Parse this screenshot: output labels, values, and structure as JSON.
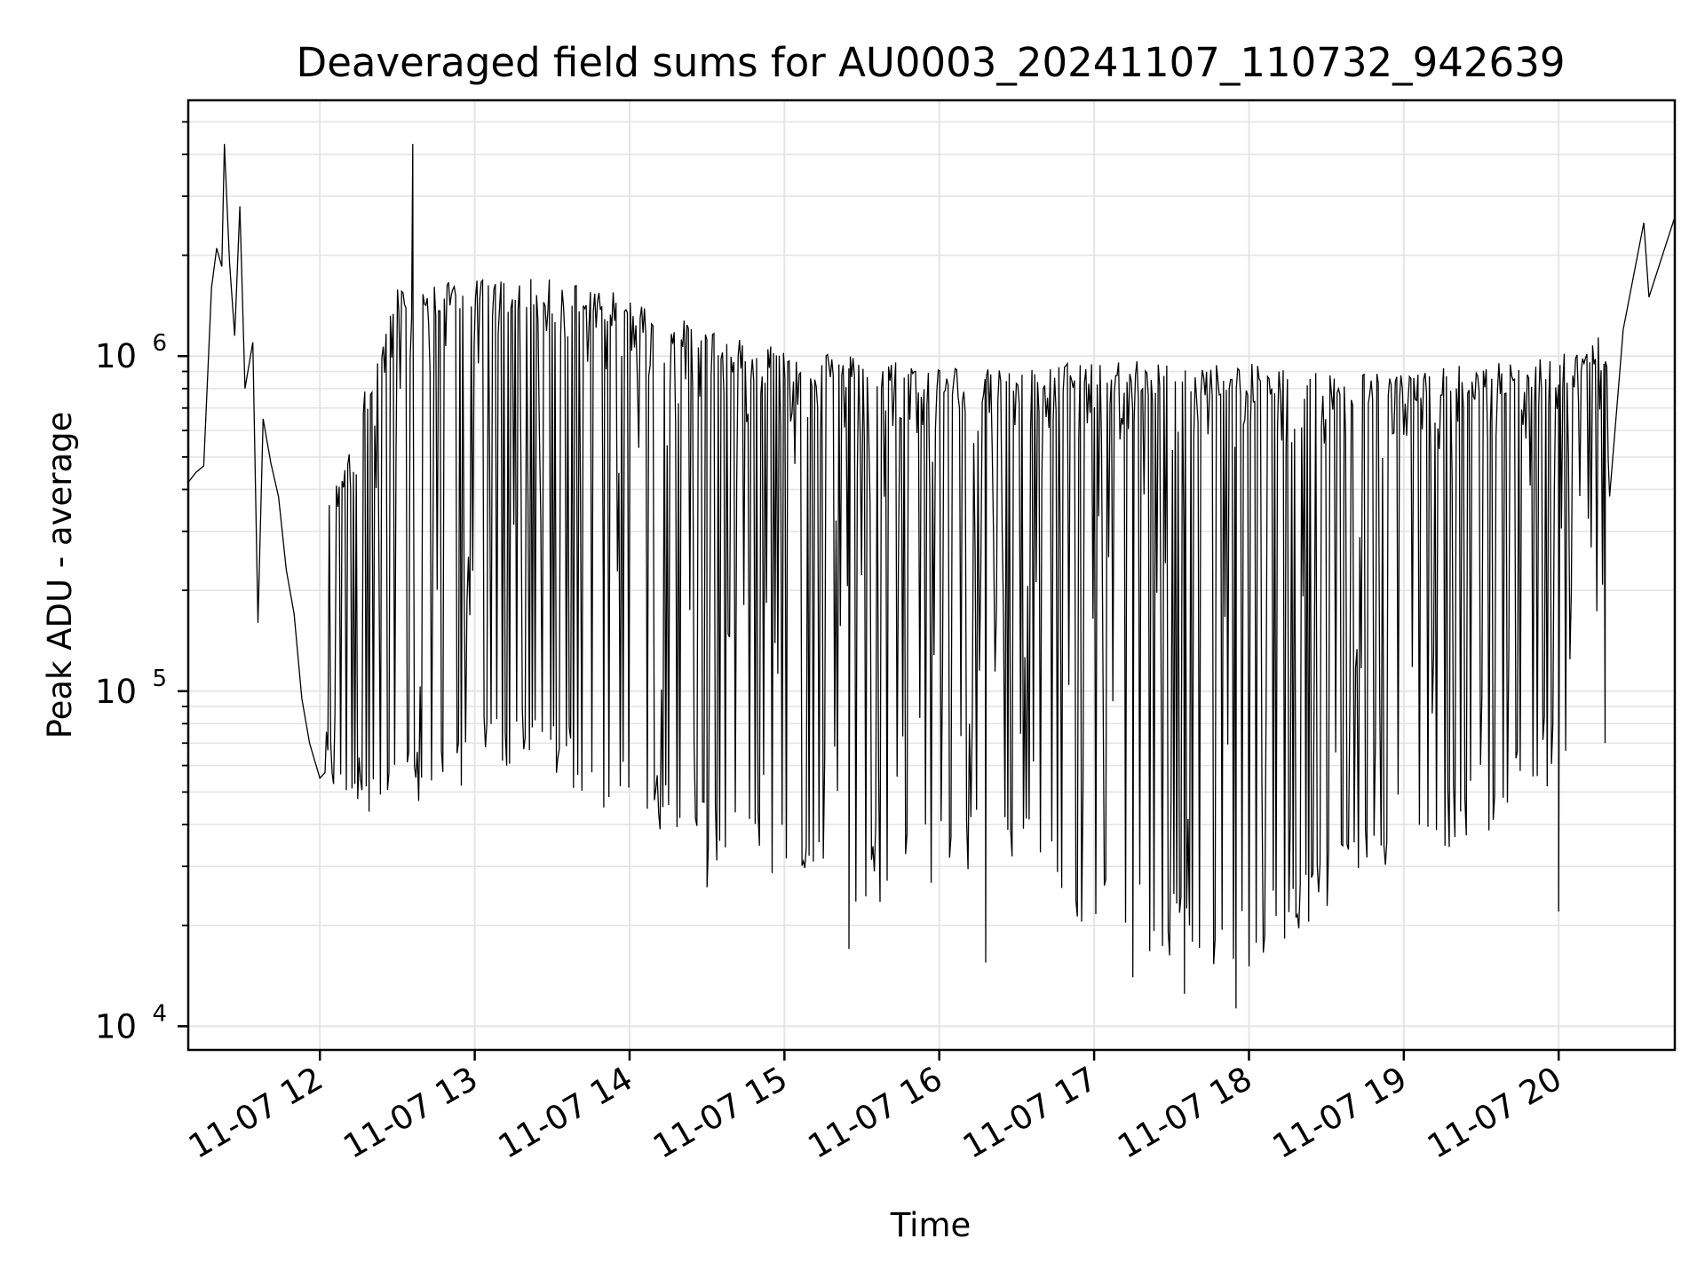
{
  "chart_data": {
    "type": "line",
    "title": "Deaveraged field sums for AU0003_20241107_110732_942639",
    "xlabel": "Time",
    "ylabel": "Peak ADU - average",
    "yscale": "log",
    "ylim": [
      8500,
      5800000
    ],
    "xlim": [
      "2024-11-07 11:09",
      "2024-11-07 20:45"
    ],
    "grid": true,
    "legend": "none",
    "line_color": "#000000",
    "grid_color": "#e5e5e5",
    "x_ticks": [
      {
        "t": "2024-11-07 12:00",
        "label": "11-07 12"
      },
      {
        "t": "2024-11-07 13:00",
        "label": "11-07 13"
      },
      {
        "t": "2024-11-07 14:00",
        "label": "11-07 14"
      },
      {
        "t": "2024-11-07 15:00",
        "label": "11-07 15"
      },
      {
        "t": "2024-11-07 16:00",
        "label": "11-07 16"
      },
      {
        "t": "2024-11-07 17:00",
        "label": "11-07 17"
      },
      {
        "t": "2024-11-07 18:00",
        "label": "11-07 18"
      },
      {
        "t": "2024-11-07 19:00",
        "label": "11-07 19"
      },
      {
        "t": "2024-11-07 20:00",
        "label": "11-07 20"
      }
    ],
    "y_ticks": [
      {
        "value": 10000,
        "base": "10",
        "exp": "4"
      },
      {
        "value": 100000,
        "base": "10",
        "exp": "5"
      },
      {
        "value": 1000000,
        "base": "10",
        "exp": "6"
      }
    ],
    "series": [
      {
        "points": [
          [
            "2024-11-07 11:09",
            420000
          ],
          [
            "2024-11-07 11:12",
            450000
          ],
          [
            "2024-11-07 11:15",
            470000
          ],
          [
            "2024-11-07 11:18",
            1600000
          ],
          [
            "2024-11-07 11:20",
            2100000
          ],
          [
            "2024-11-07 11:22",
            1850000
          ],
          [
            "2024-11-07 11:23",
            4300000
          ],
          [
            "2024-11-07 11:25",
            1900000
          ],
          [
            "2024-11-07 11:27",
            1150000
          ],
          [
            "2024-11-07 11:29",
            2800000
          ],
          [
            "2024-11-07 11:31",
            800000
          ],
          [
            "2024-11-07 11:34",
            1100000
          ],
          [
            "2024-11-07 11:36",
            160000
          ],
          [
            "2024-11-07 11:38",
            650000
          ],
          [
            "2024-11-07 11:41",
            480000
          ],
          [
            "2024-11-07 11:44",
            380000
          ],
          [
            "2024-11-07 11:47",
            230000
          ],
          [
            "2024-11-07 11:50",
            170000
          ],
          [
            "2024-11-07 11:53",
            95000
          ],
          [
            "2024-11-07 11:56",
            70000
          ],
          [
            "2024-11-07 12:00",
            55000
          ],
          [
            "2024-11-07 12:04",
            60000
          ],
          [
            "2024-11-07 12:09",
            80000
          ],
          [
            "2024-11-07 12:14",
            80000
          ],
          [
            "2024-11-07 12:20",
            75000
          ],
          [
            "2024-11-07 12:26",
            65000
          ],
          [
            "2024-11-07 12:32",
            60000
          ],
          [
            "2024-11-07 12:36",
            4300000
          ],
          [
            "2024-11-07 12:40",
            90000
          ],
          [
            "2024-11-07 12:50",
            120000
          ],
          [
            "2024-11-07 13:00",
            200000
          ],
          [
            "2024-11-07 13:10",
            350000
          ],
          [
            "2024-11-07 13:20",
            500000
          ],
          [
            "2024-11-07 13:30",
            600000
          ],
          [
            "2024-11-07 13:40",
            700000
          ],
          [
            "2024-11-07 13:50",
            800000
          ],
          [
            "2024-11-07 14:00",
            900000
          ],
          [
            "2024-11-07 14:20",
            1050000
          ],
          [
            "2024-11-07 14:40",
            900000
          ],
          [
            "2024-11-07 15:00",
            850000
          ],
          [
            "2024-11-07 15:30",
            800000
          ],
          [
            "2024-11-07 16:00",
            700000
          ],
          [
            "2024-11-07 16:30",
            650000
          ],
          [
            "2024-11-07 17:00",
            600000
          ],
          [
            "2024-11-07 17:30",
            550000
          ],
          [
            "2024-11-07 18:00",
            500000
          ],
          [
            "2024-11-07 18:30",
            500000
          ],
          [
            "2024-11-07 19:00",
            550000
          ],
          [
            "2024-11-07 19:30",
            600000
          ],
          [
            "2024-11-07 20:00",
            600000
          ],
          [
            "2024-11-07 20:15",
            650000
          ],
          [
            "2024-11-07 20:25",
            1200000
          ],
          [
            "2024-11-07 20:35",
            1500000
          ],
          [
            "2024-11-07 20:45",
            2600000
          ]
        ],
        "upper_envelope": [
          [
            "2024-11-07 12:00",
            300000
          ],
          [
            "2024-11-07 12:30",
            1600000
          ],
          [
            "2024-11-07 13:00",
            1700000
          ],
          [
            "2024-11-07 13:30",
            1700000
          ],
          [
            "2024-11-07 13:45",
            1650000
          ],
          [
            "2024-11-07 14:00",
            1500000
          ],
          [
            "2024-11-07 14:30",
            1200000
          ],
          [
            "2024-11-07 15:00",
            1100000
          ],
          [
            "2024-11-07 15:30",
            1000000
          ],
          [
            "2024-11-07 16:00",
            950000
          ],
          [
            "2024-11-07 16:30",
            900000
          ],
          [
            "2024-11-07 17:00",
            1000000
          ],
          [
            "2024-11-07 17:30",
            950000
          ],
          [
            "2024-11-07 18:00",
            950000
          ],
          [
            "2024-11-07 18:30",
            900000
          ],
          [
            "2024-11-07 19:00",
            900000
          ],
          [
            "2024-11-07 19:30",
            950000
          ],
          [
            "2024-11-07 20:00",
            1000000
          ],
          [
            "2024-11-07 20:20",
            1200000
          ]
        ],
        "lower_envelope": [
          [
            "2024-11-07 12:00",
            55000
          ],
          [
            "2024-11-07 12:30",
            45000
          ],
          [
            "2024-11-07 13:00",
            60000
          ],
          [
            "2024-11-07 13:30",
            60000
          ],
          [
            "2024-11-07 14:00",
            45000
          ],
          [
            "2024-11-07 14:30",
            35000
          ],
          [
            "2024-11-07 15:00",
            30000
          ],
          [
            "2024-11-07 15:30",
            25000
          ],
          [
            "2024-11-07 16:00",
            30000
          ],
          [
            "2024-11-07 16:30",
            35000
          ],
          [
            "2024-11-07 17:00",
            20000
          ],
          [
            "2024-11-07 17:30",
            18000
          ],
          [
            "2024-11-07 18:00",
            16000
          ],
          [
            "2024-11-07 18:30",
            25000
          ],
          [
            "2024-11-07 19:00",
            35000
          ],
          [
            "2024-11-07 19:30",
            40000
          ],
          [
            "2024-11-07 20:00",
            60000
          ],
          [
            "2024-11-07 20:20",
            250000
          ]
        ],
        "dips": [
          [
            "2024-11-07 13:50",
            45000
          ],
          [
            "2024-11-07 14:30",
            26000
          ],
          [
            "2024-11-07 15:25",
            17000
          ],
          [
            "2024-11-07 16:18",
            15500
          ],
          [
            "2024-11-07 17:15",
            14000
          ],
          [
            "2024-11-07 17:35",
            12500
          ],
          [
            "2024-11-07 17:55",
            11300
          ],
          [
            "2024-11-07 18:00",
            16000
          ],
          [
            "2024-11-07 20:00",
            22000
          ],
          [
            "2024-11-07 20:18",
            70000
          ]
        ],
        "spikes": [
          [
            "2024-11-07 11:23",
            4300000
          ],
          [
            "2024-11-07 12:36",
            4300000
          ],
          [
            "2024-11-07 20:33",
            2500000
          ]
        ]
      }
    ]
  }
}
